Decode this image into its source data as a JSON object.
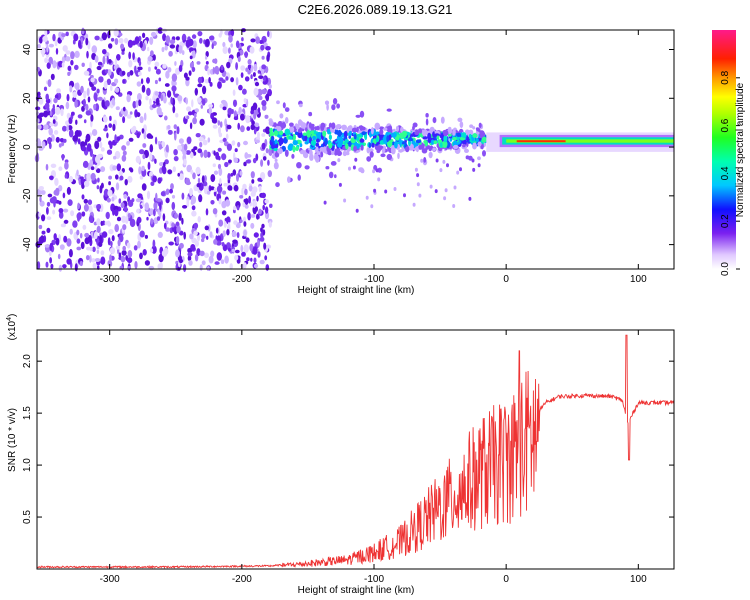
{
  "title": "C2E6.2026.089.19.13.G21",
  "chart_data": [
    {
      "type": "heatmap",
      "name": "spectrogram",
      "xlabel": "Height of straight line (km)",
      "ylabel": "Frequency (Hz)",
      "xlim": [
        -355,
        127
      ],
      "ylim": [
        -50,
        48
      ],
      "xticks": [
        -300,
        -200,
        -100,
        0,
        100
      ],
      "xtick_labels": [
        "-300",
        "-200",
        "-100",
        "0",
        "100"
      ],
      "yticks": [
        -40,
        -20,
        0,
        20,
        40
      ],
      "ytick_labels": [
        "-40",
        "-20",
        "0",
        "20",
        "40"
      ],
      "regions": [
        {
          "name": "noise",
          "x": [
            -355,
            -178
          ],
          "freq": [
            -50,
            48
          ],
          "amplitude": 0.15
        },
        {
          "name": "scattered",
          "x": [
            -178,
            -15
          ],
          "freq": [
            -25,
            15
          ],
          "amplitude": 0.3
        },
        {
          "name": "tracking",
          "x": [
            -15,
            127
          ],
          "freq": [
            -2,
            6
          ],
          "amplitude": 0.7
        }
      ],
      "colorbar": {
        "label": "Normalized spectral amplitude",
        "range": [
          0,
          1
        ],
        "ticks": [
          0.0,
          0.2,
          0.4,
          0.6,
          0.8
        ],
        "tick_labels": [
          "0.0",
          "0.2",
          "0.4",
          "0.6",
          "0.8"
        ]
      }
    },
    {
      "type": "line",
      "name": "snr",
      "xlabel": "Height of straight line (km)",
      "ylabel": "SNR (10 * v/v)",
      "multiplier_label": "(x10",
      "multiplier_exp": "4",
      "multiplier_close": ")",
      "xlim": [
        -355,
        127
      ],
      "ylim": [
        0,
        2.3
      ],
      "xticks": [
        -300,
        -200,
        -100,
        0,
        100
      ],
      "xtick_labels": [
        "-300",
        "-200",
        "-100",
        "0",
        "100"
      ],
      "yticks": [
        0.5,
        1.0,
        1.5,
        2.0
      ],
      "ytick_labels": [
        "0.5",
        "1.0",
        "1.5",
        "2.0"
      ],
      "line_color": "#ee3333",
      "series": [
        {
          "name": "SNR envelope",
          "x": [
            -355,
            -250,
            -178,
            -150,
            -120,
            -100,
            -80,
            -60,
            -40,
            -20,
            0,
            20,
            30,
            40,
            60,
            80,
            88,
            92,
            100,
            110,
            127
          ],
          "y": [
            0.02,
            0.02,
            0.03,
            0.06,
            0.1,
            0.18,
            0.3,
            0.55,
            0.8,
            1.05,
            1.2,
            1.45,
            1.6,
            1.66,
            1.67,
            1.66,
            1.62,
            1.4,
            1.6,
            1.6,
            1.6
          ]
        }
      ],
      "annotations": [
        {
          "name": "spike-near-10km",
          "x": 10,
          "y": 2.1
        },
        {
          "name": "spike-near-90km",
          "x": 91,
          "y": 2.25
        },
        {
          "name": "dip-near-93km",
          "x": 93,
          "y": 1.05
        }
      ]
    }
  ]
}
